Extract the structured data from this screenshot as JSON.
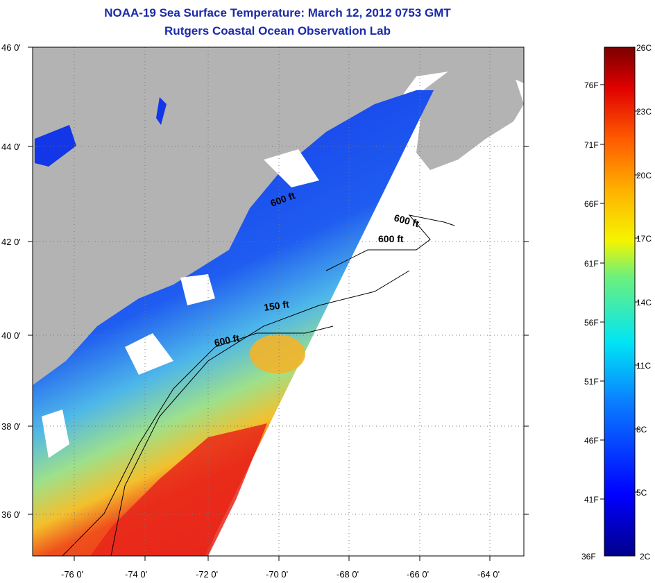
{
  "header": {
    "title": "NOAA-19 Sea Surface Temperature:  March 12, 2012 0753 GMT",
    "subtitle": "Rutgers Coastal Ocean Observation Lab"
  },
  "map": {
    "lat_labels": [
      "46 0'",
      "44 0'",
      "42 0'",
      "40 0'",
      "38 0'",
      "36 0'"
    ],
    "lon_labels": [
      "-76 0'",
      "-74 0'",
      "-72 0'",
      "-70 0'",
      "-68 0'",
      "-66 0'",
      "-64 0'"
    ],
    "contour_labels": [
      "600 ft",
      "600 ft",
      "600 ft",
      "150 ft",
      "600 ft"
    ],
    "colors": {
      "land": "#b3b3b3",
      "cloud": "#ffffff",
      "cold": "#0a2fe0",
      "mid": "#4fb8e8",
      "warm": "#f7c02a",
      "hot": "#e8261a"
    }
  },
  "colorbar": {
    "celsius_labels": [
      "26C",
      "23C",
      "20C",
      "17C",
      "14C",
      "11C",
      "8C",
      "5C",
      "2C"
    ],
    "fahrenheit_labels": [
      "76F",
      "71F",
      "66F",
      "61F",
      "56F",
      "51F",
      "46F",
      "41F",
      "36F"
    ],
    "min_c": 2,
    "max_c": 26
  }
}
